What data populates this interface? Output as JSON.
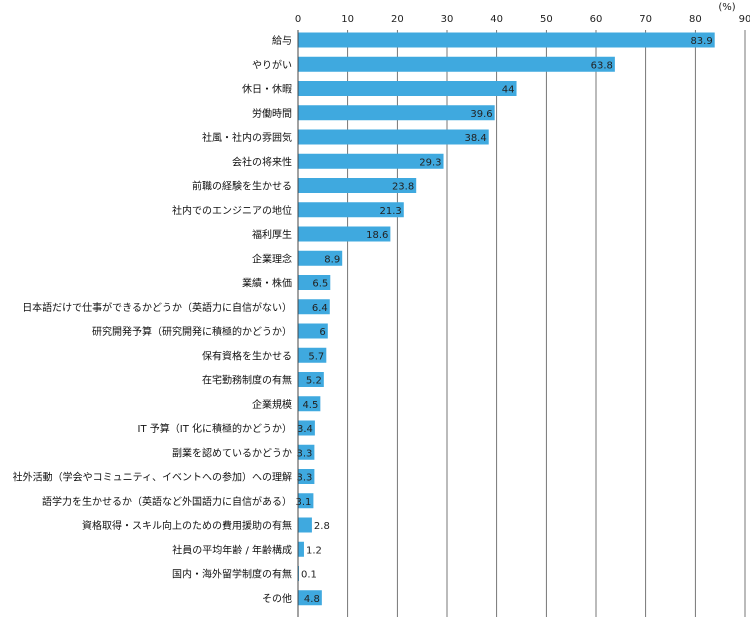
{
  "chart_data": {
    "type": "bar",
    "orientation": "horizontal",
    "unit": "(%)",
    "xlim": [
      0,
      90
    ],
    "xticks": [
      0,
      10,
      20,
      30,
      40,
      50,
      60,
      70,
      80,
      90
    ],
    "grid": true,
    "bar_color": "#3fa9df",
    "categories": [
      "給与",
      "やりがい",
      "休日・休暇",
      "労働時間",
      "社風・社内の雰囲気",
      "会社の将来性",
      "前職の経験を生かせる",
      "社内でのエンジニアの地位",
      "福利厚生",
      "企業理念",
      "業績・株価",
      "日本語だけで仕事ができるかどうか（英語力に自信がない）",
      "研究開発予算（研究開発に積極的かどうか）",
      "保有資格を生かせる",
      "在宅勤務制度の有無",
      "企業規模",
      "IT 予算（IT 化に積極的かどうか）",
      "副業を認めているかどうか",
      "社外活動（学会やコミュニティ、イベントへの参加）への理解",
      "語学力を生かせるか（英語など外国語力に自信がある）",
      "資格取得・スキル向上のための費用援助の有無",
      "社員の平均年齢 / 年齢構成",
      "国内・海外留学制度の有無",
      "その他"
    ],
    "values": [
      83.9,
      63.8,
      44,
      39.6,
      38.4,
      29.3,
      23.8,
      21.3,
      18.6,
      8.9,
      6.5,
      6.4,
      6,
      5.7,
      5.2,
      4.5,
      3.4,
      3.3,
      3.3,
      3.1,
      2.8,
      1.2,
      0.1,
      4.8
    ],
    "value_labels": [
      "83.9",
      "63.8",
      "44",
      "39.6",
      "38.4",
      "29.3",
      "23.8",
      "21.3",
      "18.6",
      "8.9",
      "6.5",
      "6.4",
      "6",
      "5.7",
      "5.2",
      "4.5",
      "3.4",
      "3.3",
      "3.3",
      "3.1",
      "2.8",
      "1.2",
      "0.1",
      "4.8"
    ]
  }
}
